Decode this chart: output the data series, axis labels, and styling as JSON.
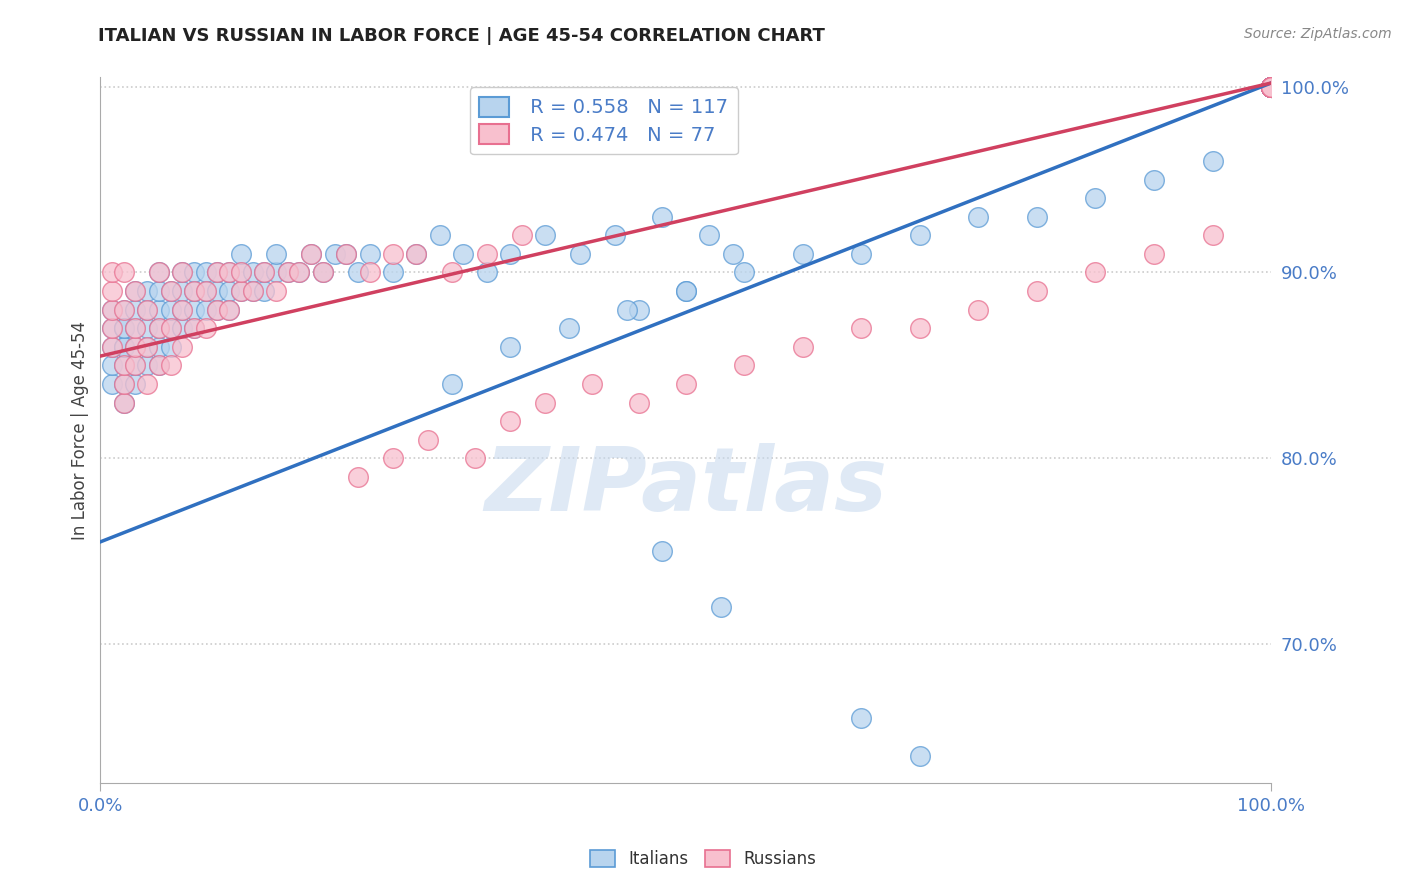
{
  "title": "ITALIAN VS RUSSIAN IN LABOR FORCE | AGE 45-54 CORRELATION CHART",
  "source_text": "Source: ZipAtlas.com",
  "ylabel": "In Labor Force | Age 45-54",
  "xlim": [
    0.0,
    1.0
  ],
  "ylim": [
    0.625,
    1.005
  ],
  "ytick_positions": [
    0.7,
    0.8,
    0.9,
    1.0
  ],
  "ytick_labels": [
    "70.0%",
    "80.0%",
    "90.0%",
    "100.0%"
  ],
  "xtick_positions": [
    0.0,
    1.0
  ],
  "xtick_labels": [
    "0.0%",
    "100.0%"
  ],
  "italian_fill_color": "#b8d4ee",
  "italian_edge_color": "#5b9bd5",
  "russian_fill_color": "#f8c0ce",
  "russian_edge_color": "#e87090",
  "italian_line_color": "#3070c0",
  "russian_line_color": "#d04060",
  "tick_label_color": "#4a7cc7",
  "legend_R_italian": "R = 0.558",
  "legend_N_italian": "N = 117",
  "legend_R_russian": "R = 0.474",
  "legend_N_russian": "N = 77",
  "watermark_text": "ZIPatlas",
  "italian_line_x0": 0.0,
  "italian_line_y0": 0.755,
  "italian_line_x1": 1.0,
  "italian_line_y1": 1.002,
  "russian_line_x0": 0.0,
  "russian_line_y0": 0.855,
  "russian_line_x1": 1.0,
  "russian_line_y1": 1.002,
  "italian_x": [
    0.01,
    0.01,
    0.01,
    0.01,
    0.01,
    0.02,
    0.02,
    0.02,
    0.02,
    0.02,
    0.02,
    0.02,
    0.02,
    0.03,
    0.03,
    0.03,
    0.03,
    0.03,
    0.03,
    0.04,
    0.04,
    0.04,
    0.04,
    0.04,
    0.05,
    0.05,
    0.05,
    0.05,
    0.05,
    0.05,
    0.06,
    0.06,
    0.06,
    0.06,
    0.07,
    0.07,
    0.07,
    0.07,
    0.08,
    0.08,
    0.08,
    0.08,
    0.09,
    0.09,
    0.09,
    0.1,
    0.1,
    0.1,
    0.11,
    0.11,
    0.11,
    0.12,
    0.12,
    0.12,
    0.13,
    0.13,
    0.14,
    0.14,
    0.15,
    0.15,
    0.16,
    0.17,
    0.18,
    0.19,
    0.2,
    0.21,
    0.22,
    0.23,
    0.25,
    0.27,
    0.29,
    0.31,
    0.33,
    0.35,
    0.38,
    0.41,
    0.44,
    0.48,
    0.52,
    0.46,
    0.5,
    0.54,
    0.3,
    0.35,
    0.4,
    0.45,
    0.5,
    0.55,
    0.6,
    0.65,
    0.7,
    0.75,
    0.8,
    0.85,
    0.9,
    0.95,
    1.0,
    1.0,
    1.0,
    1.0,
    1.0,
    1.0,
    1.0,
    1.0,
    1.0,
    1.0,
    1.0,
    1.0,
    1.0,
    1.0,
    1.0,
    1.0,
    1.0,
    0.48,
    0.53,
    0.65,
    0.7
  ],
  "italian_y": [
    0.84,
    0.85,
    0.86,
    0.87,
    0.88,
    0.83,
    0.84,
    0.85,
    0.86,
    0.87,
    0.88,
    0.86,
    0.87,
    0.84,
    0.85,
    0.86,
    0.87,
    0.88,
    0.89,
    0.85,
    0.86,
    0.87,
    0.88,
    0.89,
    0.85,
    0.86,
    0.87,
    0.88,
    0.89,
    0.9,
    0.86,
    0.87,
    0.88,
    0.89,
    0.87,
    0.88,
    0.89,
    0.9,
    0.87,
    0.88,
    0.89,
    0.9,
    0.88,
    0.89,
    0.9,
    0.88,
    0.89,
    0.9,
    0.88,
    0.89,
    0.9,
    0.89,
    0.9,
    0.91,
    0.89,
    0.9,
    0.89,
    0.9,
    0.9,
    0.91,
    0.9,
    0.9,
    0.91,
    0.9,
    0.91,
    0.91,
    0.9,
    0.91,
    0.9,
    0.91,
    0.92,
    0.91,
    0.9,
    0.91,
    0.92,
    0.91,
    0.92,
    0.93,
    0.92,
    0.88,
    0.89,
    0.91,
    0.84,
    0.86,
    0.87,
    0.88,
    0.89,
    0.9,
    0.91,
    0.91,
    0.92,
    0.93,
    0.93,
    0.94,
    0.95,
    0.96,
    1.0,
    1.0,
    1.0,
    1.0,
    1.0,
    1.0,
    1.0,
    1.0,
    1.0,
    1.0,
    1.0,
    1.0,
    1.0,
    1.0,
    1.0,
    1.0,
    1.0,
    0.75,
    0.72,
    0.66,
    0.64
  ],
  "russian_x": [
    0.01,
    0.01,
    0.01,
    0.01,
    0.01,
    0.02,
    0.02,
    0.02,
    0.02,
    0.02,
    0.03,
    0.03,
    0.03,
    0.03,
    0.04,
    0.04,
    0.04,
    0.05,
    0.05,
    0.05,
    0.06,
    0.06,
    0.06,
    0.07,
    0.07,
    0.07,
    0.08,
    0.08,
    0.09,
    0.09,
    0.1,
    0.1,
    0.11,
    0.11,
    0.12,
    0.12,
    0.13,
    0.14,
    0.15,
    0.16,
    0.17,
    0.18,
    0.19,
    0.21,
    0.23,
    0.25,
    0.27,
    0.3,
    0.33,
    0.36,
    0.22,
    0.25,
    0.28,
    0.32,
    0.35,
    0.38,
    0.42,
    0.46,
    0.5,
    0.55,
    0.6,
    0.65,
    0.7,
    0.75,
    0.8,
    0.85,
    0.9,
    0.95,
    1.0,
    1.0,
    1.0,
    1.0,
    1.0,
    1.0,
    1.0,
    1.0,
    1.0
  ],
  "russian_y": [
    0.86,
    0.87,
    0.88,
    0.89,
    0.9,
    0.83,
    0.84,
    0.85,
    0.88,
    0.9,
    0.85,
    0.86,
    0.87,
    0.89,
    0.84,
    0.86,
    0.88,
    0.85,
    0.87,
    0.9,
    0.85,
    0.87,
    0.89,
    0.86,
    0.88,
    0.9,
    0.87,
    0.89,
    0.87,
    0.89,
    0.88,
    0.9,
    0.88,
    0.9,
    0.89,
    0.9,
    0.89,
    0.9,
    0.89,
    0.9,
    0.9,
    0.91,
    0.9,
    0.91,
    0.9,
    0.91,
    0.91,
    0.9,
    0.91,
    0.92,
    0.79,
    0.8,
    0.81,
    0.8,
    0.82,
    0.83,
    0.84,
    0.83,
    0.84,
    0.85,
    0.86,
    0.87,
    0.87,
    0.88,
    0.89,
    0.9,
    0.91,
    0.92,
    1.0,
    1.0,
    1.0,
    1.0,
    1.0,
    1.0,
    1.0,
    1.0,
    1.0
  ]
}
